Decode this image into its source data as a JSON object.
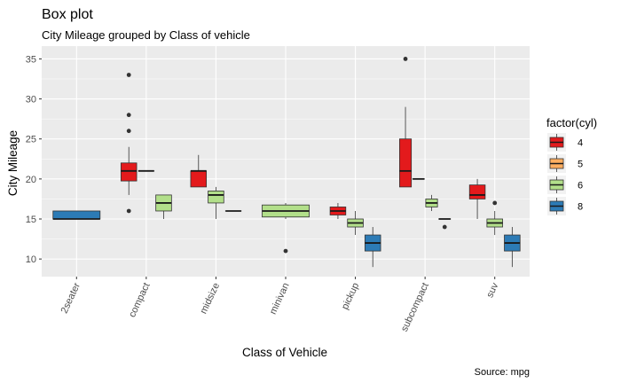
{
  "chart_data": {
    "type": "box",
    "title": "Box plot",
    "subtitle": "City Mileage grouped by Class of vehicle",
    "caption": "Source: mpg",
    "xlabel": "Class of Vehicle",
    "ylabel": "City Mileage",
    "ylim": [
      7.8,
      36.6
    ],
    "yticks": [
      10,
      15,
      20,
      25,
      30,
      35
    ],
    "categories": [
      "2seater",
      "compact",
      "midsize",
      "minivan",
      "pickup",
      "subcompact",
      "suv"
    ],
    "legend": {
      "title": "factor(cyl)",
      "position": "right",
      "entries": [
        {
          "label": "4",
          "color": "#E31A1C"
        },
        {
          "label": "5",
          "color": "#FDAE61"
        },
        {
          "label": "6",
          "color": "#B2DF8A"
        },
        {
          "label": "8",
          "color": "#2C7BB6"
        }
      ]
    },
    "series": [
      {
        "name": "4",
        "color": "#E31A1C",
        "boxes": [
          {
            "category": "compact",
            "min": 18,
            "q1": 19.75,
            "median": 21,
            "q3": 22,
            "max": 24,
            "outliers": [
              16,
              26,
              28,
              33
            ]
          },
          {
            "category": "midsize",
            "min": 19,
            "q1": 19,
            "median": 21,
            "q3": 21,
            "max": 23,
            "outliers": []
          },
          {
            "category": "pickup",
            "min": 15,
            "q1": 15.5,
            "median": 16,
            "q3": 16.5,
            "max": 17,
            "outliers": []
          },
          {
            "category": "subcompact",
            "min": 19,
            "q1": 19,
            "median": 21,
            "q3": 25,
            "max": 29,
            "outliers": [
              35
            ]
          },
          {
            "category": "suv",
            "min": 15,
            "q1": 17.5,
            "median": 18,
            "q3": 19.25,
            "max": 20,
            "outliers": []
          }
        ]
      },
      {
        "name": "5",
        "color": "#FDAE61",
        "boxes": [
          {
            "category": "compact",
            "min": 21,
            "q1": 21,
            "median": 21,
            "q3": 21,
            "max": 21,
            "outliers": []
          },
          {
            "category": "subcompact",
            "min": 20,
            "q1": 20,
            "median": 20,
            "q3": 20,
            "max": 20,
            "outliers": []
          }
        ]
      },
      {
        "name": "6",
        "color": "#B2DF8A",
        "boxes": [
          {
            "category": "compact",
            "min": 15,
            "q1": 16,
            "median": 17,
            "q3": 18,
            "max": 18,
            "outliers": []
          },
          {
            "category": "midsize",
            "min": 15,
            "q1": 17,
            "median": 18,
            "q3": 18.5,
            "max": 19,
            "outliers": []
          },
          {
            "category": "minivan",
            "min": 15,
            "q1": 15.25,
            "median": 16,
            "q3": 16.75,
            "max": 17,
            "outliers": [
              11
            ]
          },
          {
            "category": "pickup",
            "min": 13,
            "q1": 14,
            "median": 14.5,
            "q3": 15,
            "max": 16,
            "outliers": []
          },
          {
            "category": "subcompact",
            "min": 16,
            "q1": 16.5,
            "median": 17,
            "q3": 17.5,
            "max": 18,
            "outliers": []
          },
          {
            "category": "suv",
            "min": 13,
            "q1": 14,
            "median": 14.5,
            "q3": 15,
            "max": 16,
            "outliers": [
              17
            ]
          }
        ]
      },
      {
        "name": "8",
        "color": "#2C7BB6",
        "boxes": [
          {
            "category": "2seater",
            "min": 15,
            "q1": 15,
            "median": 15,
            "q3": 16,
            "max": 16,
            "outliers": []
          },
          {
            "category": "midsize",
            "min": 16,
            "q1": 16,
            "median": 16,
            "q3": 16,
            "max": 16,
            "outliers": []
          },
          {
            "category": "pickup",
            "min": 9,
            "q1": 11,
            "median": 12,
            "q3": 13,
            "max": 14,
            "outliers": []
          },
          {
            "category": "subcompact",
            "min": 15,
            "q1": 15,
            "median": 15,
            "q3": 15,
            "max": 15,
            "outliers": [
              14
            ]
          },
          {
            "category": "suv",
            "min": 9,
            "q1": 11,
            "median": 12,
            "q3": 13,
            "max": 14,
            "outliers": []
          }
        ]
      }
    ]
  }
}
